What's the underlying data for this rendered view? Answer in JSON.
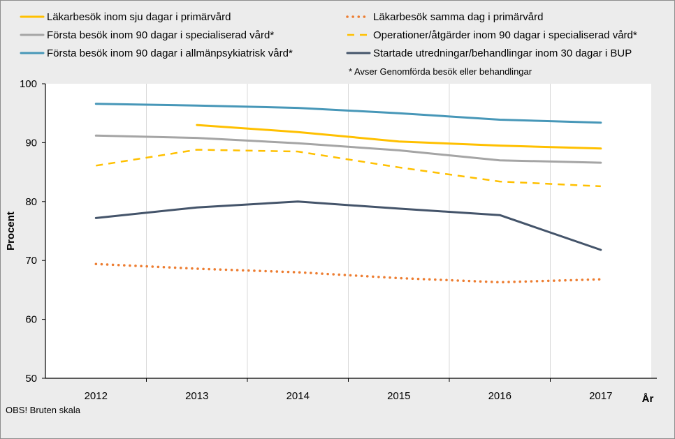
{
  "chart_data": {
    "type": "line",
    "title": "",
    "xlabel": "År",
    "ylabel": "Procent",
    "ylim": [
      50,
      100
    ],
    "yticks": [
      50,
      60,
      70,
      80,
      90,
      100
    ],
    "x": [
      2012,
      2013,
      2014,
      2015,
      2016,
      2017
    ],
    "x_labels": [
      "2012",
      "2013",
      "2014",
      "2015",
      "2016",
      "2017"
    ],
    "grid": "vertical",
    "series": [
      {
        "name": "Läkarbesök inom sju dagar i primärvård",
        "color": "#ffc000",
        "style": "solid",
        "values": [
          null,
          93.0,
          91.8,
          90.2,
          89.5,
          89.0
        ]
      },
      {
        "name": "Läkarbesök samma dag i primärvård",
        "color": "#ed7d31",
        "style": "dotted",
        "values": [
          69.4,
          68.6,
          68.0,
          67.0,
          66.3,
          66.8
        ]
      },
      {
        "name": "Första besök inom 90 dagar i specialiserad vård*",
        "color": "#a5a5a5",
        "style": "solid",
        "values": [
          91.2,
          90.8,
          89.9,
          88.7,
          87.0,
          86.6
        ]
      },
      {
        "name": "Operationer/åtgärder inom 90 dagar i specialiserad vård*",
        "color": "#ffc000",
        "style": "dashed",
        "values": [
          86.1,
          88.8,
          88.5,
          85.8,
          83.4,
          82.6
        ]
      },
      {
        "name": "Första besök inom 90 dagar i allmänpsykiatrisk vård*",
        "color": "#4797b8",
        "style": "solid",
        "values": [
          96.6,
          96.3,
          95.9,
          95.0,
          93.9,
          93.4
        ]
      },
      {
        "name": "Startade utredningar/behandlingar inom 30 dagar i BUP",
        "color": "#44546a",
        "style": "solid",
        "values": [
          77.2,
          79.0,
          80.0,
          78.8,
          77.7,
          71.8
        ]
      }
    ],
    "legend_note": "* Avser Genomförda besök eller behandlingar",
    "footnote": "OBS! Bruten skala"
  }
}
